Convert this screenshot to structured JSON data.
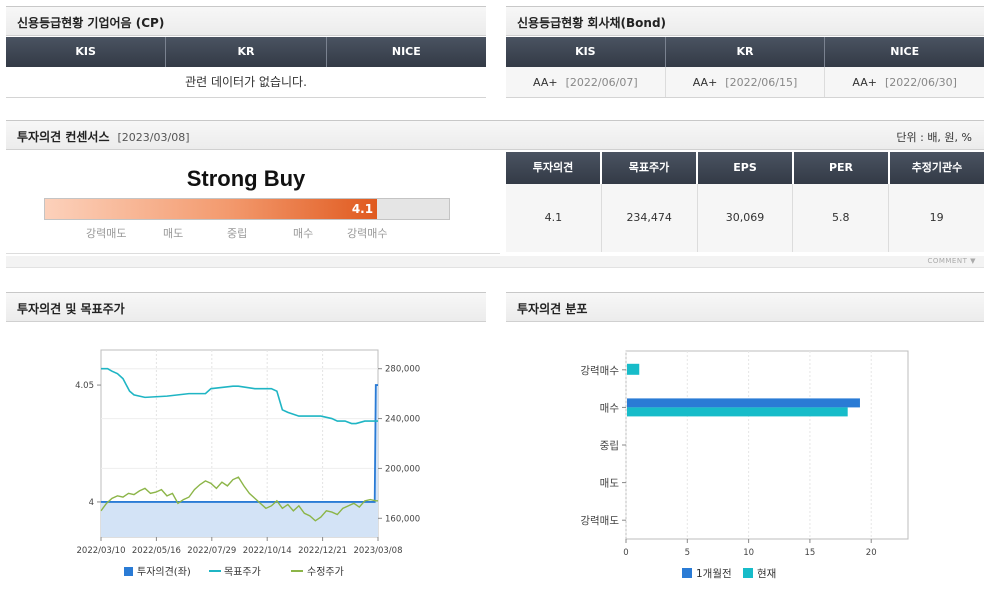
{
  "cp": {
    "title": "신용등급현황 기업어음 (CP)",
    "headers": [
      "KIS",
      "KR",
      "NICE"
    ],
    "empty_message": "관련 데이터가 없습니다."
  },
  "bond": {
    "title": "신용등급현황 회사채(Bond)",
    "headers": [
      "KIS",
      "KR",
      "NICE"
    ],
    "ratings": [
      {
        "grade": "AA+",
        "date": "[2022/06/07]"
      },
      {
        "grade": "AA+",
        "date": "[2022/06/15]"
      },
      {
        "grade": "AA+",
        "date": "[2022/06/30]"
      }
    ]
  },
  "consensus": {
    "title": "투자의견 컨센서스",
    "date": "[2023/03/08]",
    "unit": "단위 : 배, 원, %",
    "opinion_text": "Strong Buy",
    "score": "4.1",
    "score_fraction": 0.822,
    "scale_labels": [
      "강력매도",
      "매도",
      "중립",
      "매수",
      "강력매수"
    ],
    "table_headers": [
      "투자의견",
      "목표주가",
      "EPS",
      "PER",
      "추정기관수"
    ],
    "table_values": [
      "4.1",
      "234,474",
      "30,069",
      "5.8",
      "19"
    ],
    "comment_label": "COMMENT"
  },
  "trend_chart": {
    "title": "투자의견 및 목표주가",
    "legend": [
      "투자의견(좌)",
      "목표주가",
      "수정주가"
    ]
  },
  "dist_chart": {
    "title": "투자의견 분포",
    "legend": [
      "1개월전",
      "현재"
    ]
  },
  "colors": {
    "header_dark": "#3b4351",
    "bar_orange": "#e05a1f",
    "opinion_blue": "#2a7bd5",
    "target_teal": "#1fb5c4",
    "price_green": "#8cb548",
    "current_teal": "#17bcc9"
  },
  "chart_data": [
    {
      "type": "line",
      "x_ticks": [
        "2022/03/10",
        "2022/05/16",
        "2022/07/29",
        "2022/10/14",
        "2022/12/21",
        "2023/03/08"
      ],
      "left_ticks": [
        "4.05",
        "4"
      ],
      "left_ylim": [
        3.985,
        4.065
      ],
      "right_ticks": [
        "280,000",
        "240,000",
        "200,000",
        "160,000"
      ],
      "right_ylim": [
        145000,
        295000
      ],
      "series": [
        {
          "name": "투자의견(좌)",
          "axis": "left",
          "x": [
            0,
            248,
            249,
            250,
            251,
            252
          ],
          "values": [
            4.0,
            4.0,
            4.0,
            4.05,
            4.05,
            4.05
          ]
        },
        {
          "name": "목표주가",
          "axis": "right",
          "x": [
            0,
            6,
            10,
            15,
            20,
            26,
            30,
            40,
            60,
            70,
            80,
            95,
            100,
            110,
            120,
            125,
            140,
            150,
            155,
            160,
            162,
            165,
            170,
            180,
            200,
            210,
            215,
            222,
            228,
            232,
            236,
            240,
            245,
            249,
            250,
            252
          ],
          "values": [
            280000,
            280000,
            278000,
            276000,
            272000,
            262000,
            259000,
            257000,
            258000,
            259000,
            260000,
            260000,
            264000,
            265000,
            266000,
            266000,
            264000,
            264000,
            264000,
            262000,
            256000,
            247000,
            245000,
            242000,
            242000,
            240000,
            238000,
            238000,
            236000,
            236000,
            237000,
            238000,
            238000,
            238000,
            238000,
            238000
          ]
        },
        {
          "name": "수정주가",
          "axis": "right",
          "x": [
            0,
            5,
            10,
            15,
            20,
            25,
            30,
            35,
            40,
            45,
            50,
            55,
            60,
            65,
            70,
            75,
            80,
            85,
            90,
            95,
            100,
            105,
            110,
            115,
            120,
            125,
            130,
            135,
            140,
            145,
            150,
            155,
            160,
            165,
            170,
            175,
            180,
            185,
            190,
            195,
            200,
            205,
            210,
            215,
            220,
            225,
            230,
            235,
            240,
            245,
            250,
            252
          ],
          "values": [
            166000,
            172000,
            176000,
            178000,
            177000,
            180000,
            179000,
            182000,
            184000,
            180000,
            181000,
            183000,
            178000,
            180000,
            172000,
            175000,
            177000,
            183000,
            187000,
            190000,
            188000,
            184000,
            189000,
            186000,
            191000,
            193000,
            186000,
            180000,
            176000,
            172000,
            168000,
            170000,
            174000,
            168000,
            171000,
            166000,
            170000,
            164000,
            162000,
            158000,
            161000,
            166000,
            165000,
            163000,
            168000,
            170000,
            172000,
            169000,
            174000,
            175000,
            174000,
            174000
          ]
        }
      ]
    },
    {
      "type": "bar",
      "orientation": "horizontal",
      "categories": [
        "강력매수",
        "매수",
        "중립",
        "매도",
        "강력매도"
      ],
      "x_ticks": [
        0,
        5,
        10,
        15,
        20
      ],
      "xlim": [
        0,
        23
      ],
      "series": [
        {
          "name": "1개월전",
          "values": [
            0,
            19,
            0,
            0,
            0
          ]
        },
        {
          "name": "현재",
          "values": [
            1,
            18,
            0,
            0,
            0
          ]
        }
      ]
    }
  ]
}
